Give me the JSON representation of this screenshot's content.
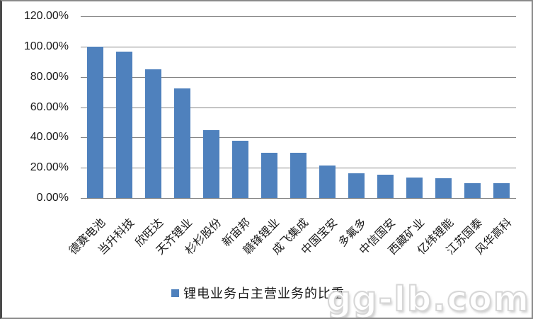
{
  "chart_data": {
    "type": "bar",
    "title": "",
    "categories": [
      "德赛电池",
      "当升科技",
      "欣旺达",
      "天齐锂业",
      "杉杉股份",
      "新宙邦",
      "赣锋锂业",
      "成飞集成",
      "中国宝安",
      "多氟多",
      "中信国安",
      "西藏矿业",
      "亿纬锂能",
      "江苏国泰",
      "风华高科"
    ],
    "values": [
      100,
      96.5,
      85,
      72.5,
      45,
      38,
      30,
      30,
      21.5,
      16.5,
      15.5,
      13.5,
      13,
      10,
      10
    ],
    "unit": "%",
    "xlabel": "",
    "ylabel": "",
    "ylim": [
      0,
      120
    ],
    "y_ticks": [
      "120.00%",
      "100.00%",
      "80.00%",
      "60.00%",
      "40.00%",
      "20.00%",
      "0.00%"
    ],
    "y_tick_values": [
      120,
      100,
      80,
      60,
      40,
      20,
      0
    ],
    "grid": "horizontal",
    "legend_position": "bottom",
    "series": [
      {
        "name": "锂电业务占主营业务的比重",
        "color": "#4F81BD"
      }
    ]
  },
  "legend": {
    "label": "锂电业务占主营业务的比重",
    "marker_color": "#4F81BD"
  },
  "watermark": "gg-lb.com",
  "colors": {
    "bar": "#4F81BD",
    "gridline": "#848484",
    "axis": "#848484",
    "frame_border": "#8A8A8A",
    "text": "#1A1A1A"
  }
}
